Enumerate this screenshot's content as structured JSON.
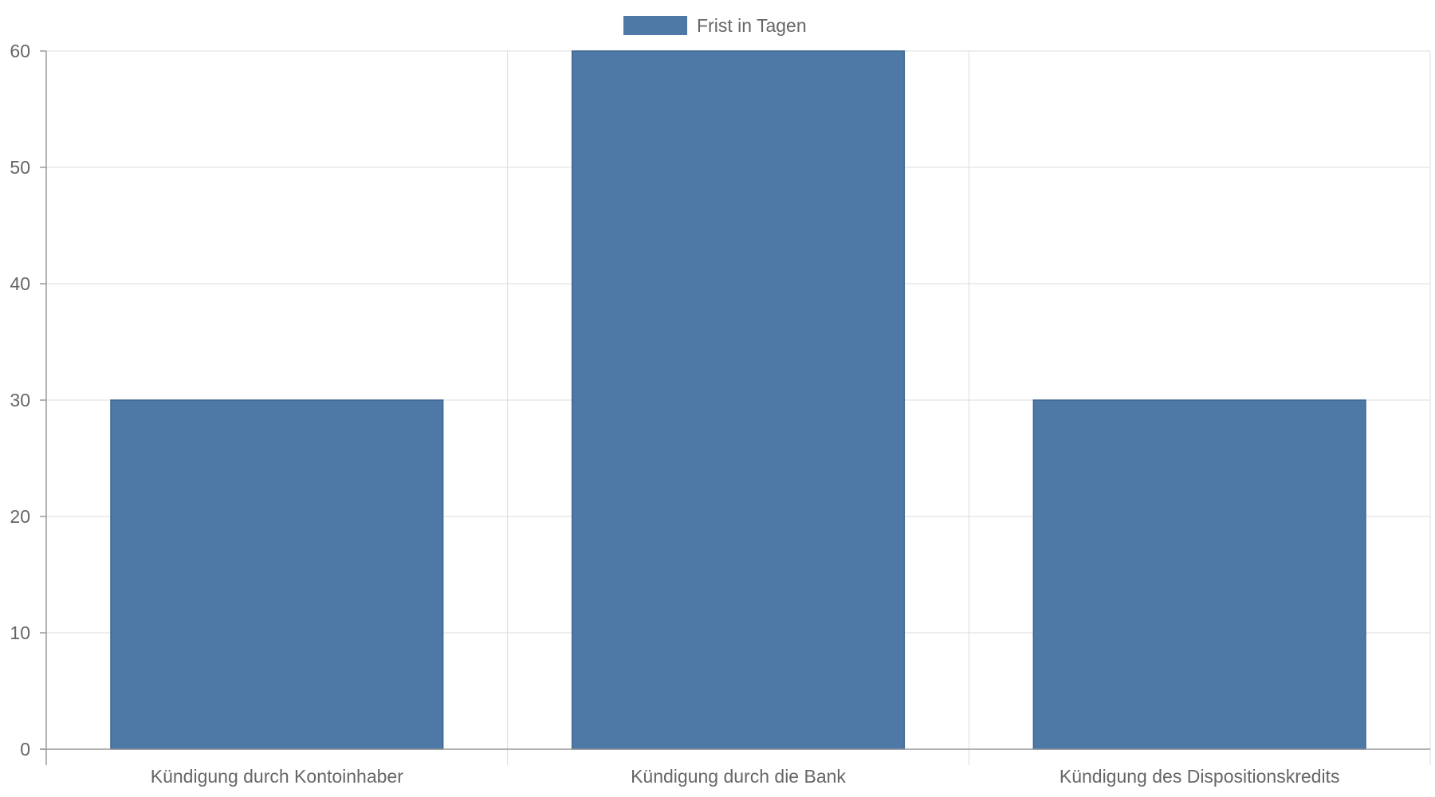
{
  "chart_data": {
    "type": "bar",
    "categories": [
      "Kündigung durch Kontoinhaber",
      "Kündigung durch die Bank",
      "Kündigung des Dispositionskredits"
    ],
    "series": [
      {
        "name": "Frist in Tagen",
        "values": [
          30,
          60,
          30
        ],
        "color": "#4e79a7"
      }
    ],
    "ylim": [
      0,
      60
    ],
    "yticks": [
      0,
      10,
      20,
      30,
      40,
      50,
      60
    ],
    "grid": true,
    "legend_position": "top-center"
  }
}
